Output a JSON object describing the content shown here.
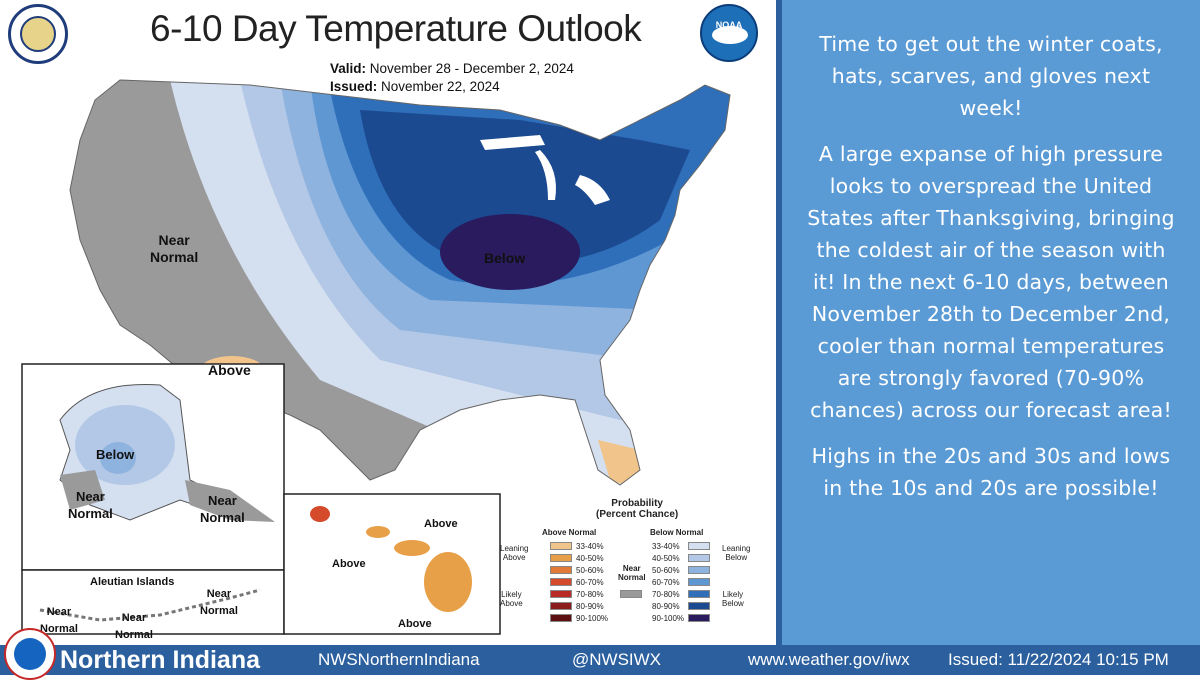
{
  "map": {
    "title": "6-10 Day Temperature Outlook",
    "valid_label": "Valid:",
    "valid": "November 28 - December 2, 2024",
    "issued_label": "Issued:",
    "issued": "November 22, 2024",
    "labels": {
      "near_normal_west": "Near\nNormal",
      "below_center": "Below",
      "above_southwest": "Above",
      "alaska_below": "Below",
      "alaska_near_normal_w": "Near\nNormal",
      "alaska_near_normal_e": "Near\nNormal",
      "aleutian_title": "Aleutian Islands",
      "aleutian_near_normal_1": "Near\nNormal",
      "aleutian_near_normal_2": "Near\nNormal",
      "aleutian_near_normal_3": "Near\nNormal",
      "hawaii_above_1": "Above",
      "hawaii_above_2": "Above",
      "hawaii_above_3": "Above"
    },
    "legend": {
      "title": "Probability\n(Percent Chance)",
      "above_header": "Above Normal",
      "below_header": "Below Normal",
      "near_normal": "Near\nNormal",
      "leaning_above": "Leaning\nAbove",
      "likely_above": "Likely\nAbove",
      "leaning_below": "Leaning\nBelow",
      "likely_below": "Likely\nBelow",
      "ranges": [
        "33-40%",
        "40-50%",
        "50-60%",
        "60-70%",
        "70-80%",
        "80-90%",
        "90-100%"
      ],
      "above_colors": [
        "#f0c48a",
        "#e8a048",
        "#e07a36",
        "#d44a2a",
        "#b82a24",
        "#8c1c1c",
        "#5e1010"
      ],
      "below_colors": [
        "#d4dff0",
        "#b3c8e6",
        "#8fb3df",
        "#5f97d3",
        "#2f6fba",
        "#1c4a91",
        "#2a1a5e"
      ],
      "near_color": "#9a9a9a"
    }
  },
  "panel": {
    "p1": "Time to get out the winter coats, hats, scarves, and gloves next week!",
    "p2": "A large expanse of high pressure looks to overspread the United States after Thanksgiving, bringing the coldest air of the season with it! In the next 6-10 days, between November 28th to December 2nd, cooler than normal temperatures are strongly favored (70-90% chances) across our forecast area!",
    "p3": "Highs in the 20s and 30s and lows in the 10s and 20s are possible!"
  },
  "footer": {
    "brand": "Northern Indiana",
    "facebook": "NWSNorthernIndiana",
    "twitter": "@NWSIWX",
    "website": "www.weather.gov/iwx",
    "issued": "Issued: 11/22/2024 10:15 PM"
  },
  "colors": {
    "panel": "#5b9bd5",
    "footer": "#2b5f9e"
  }
}
